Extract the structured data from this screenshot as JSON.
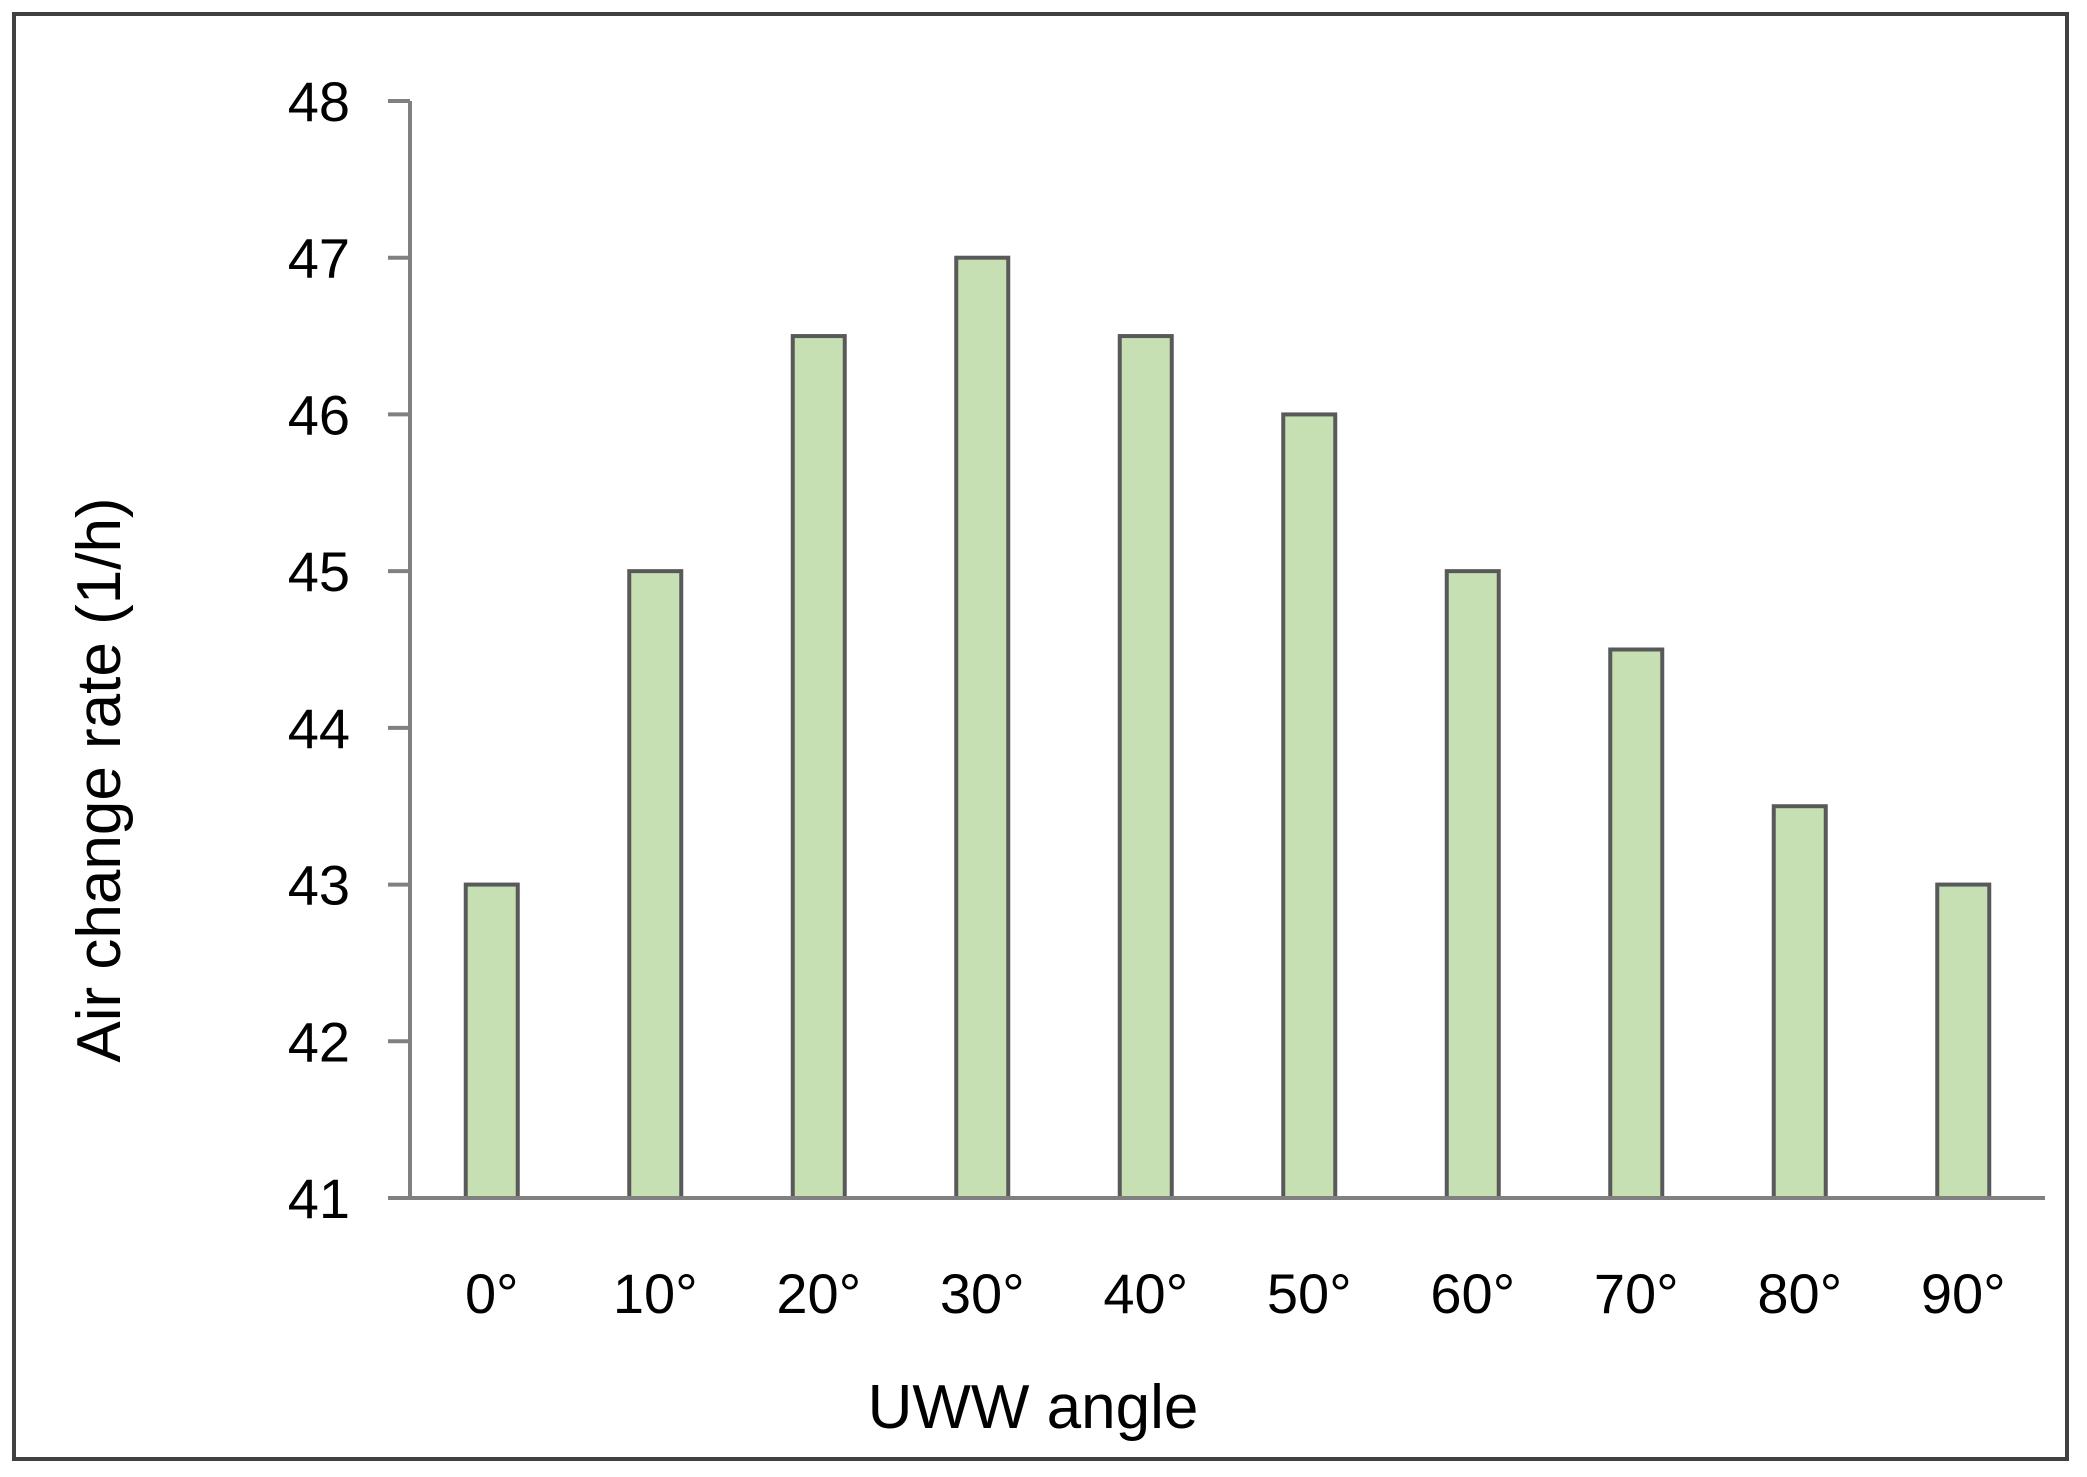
{
  "chart_data": {
    "type": "bar",
    "title": "",
    "xlabel": "UWW angle",
    "ylabel": "Air change rate (1/h)",
    "categories": [
      "0°",
      "10°",
      "20°",
      "30°",
      "40°",
      "50°",
      "60°",
      "70°",
      "80°",
      "90°"
    ],
    "values": [
      43,
      45,
      46.5,
      47,
      46.5,
      46,
      45,
      44.5,
      43.5,
      43
    ],
    "ylim": [
      41,
      48
    ],
    "yticks": [
      "41",
      "42",
      "43",
      "44",
      "45",
      "46",
      "47",
      "48"
    ],
    "grid": false,
    "legend": "none",
    "colors": {
      "bar_fill": "#c6e0b4",
      "bar_stroke": "#595959",
      "axis": "#808080",
      "frame": "#404040"
    }
  }
}
